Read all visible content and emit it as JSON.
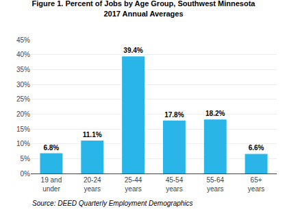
{
  "chart_data": {
    "type": "bar",
    "title": "Figure 1. Percent of Jobs by Age Group, Southwest Minnesota",
    "subtitle": "2017 Annual Averages",
    "categories": [
      "19 and\nunder",
      "20-24\nyears",
      "25-44\nyears",
      "45-54\nyears",
      "55-64\nyears",
      "65+\nyears"
    ],
    "values": [
      6.8,
      11.1,
      39.4,
      17.8,
      18.2,
      6.6
    ],
    "value_labels": [
      "6.8%",
      "11.1%",
      "39.4%",
      "17.8%",
      "18.2%",
      "6.6%"
    ],
    "data_labels": true,
    "color": "#29b5e8",
    "ylim": [
      0,
      45
    ],
    "yticks": [
      {
        "value": 0,
        "label": "0%"
      },
      {
        "value": 5,
        "label": "5%"
      },
      {
        "value": 10,
        "label": "10%"
      },
      {
        "value": 15,
        "label": "15%"
      },
      {
        "value": 20,
        "label": "20%"
      },
      {
        "value": 25,
        "label": "25%"
      },
      {
        "value": 30,
        "label": "30%"
      },
      {
        "value": 35,
        "label": "35%"
      },
      {
        "value": 40,
        "label": "40%"
      },
      {
        "value": 45,
        "label": "45%"
      }
    ],
    "grid": true,
    "annotations": [
      "Source: DEED Quarterly Employment Demographics"
    ]
  }
}
